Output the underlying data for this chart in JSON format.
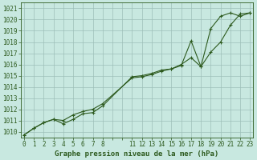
{
  "title": "Graphe pression niveau de la mer (hPa)",
  "background_color": "#c8e8e0",
  "grid_color": "#9dbfb8",
  "line_color": "#2d5a1e",
  "xlim": [
    0,
    23
  ],
  "ylim": [
    1009.5,
    1021.5
  ],
  "yticks": [
    1010,
    1011,
    1012,
    1013,
    1014,
    1015,
    1016,
    1017,
    1018,
    1019,
    1020,
    1021
  ],
  "xticks_all": [
    0,
    1,
    2,
    3,
    4,
    5,
    6,
    7,
    8,
    9,
    10,
    11,
    12,
    13,
    14,
    15,
    16,
    17,
    18,
    19,
    20,
    21,
    22,
    23
  ],
  "xtick_labels": [
    "0",
    "1",
    "2",
    "3",
    "4",
    "5",
    "6",
    "7",
    "8",
    "",
    "",
    "11",
    "12",
    "13",
    "14",
    "15",
    "16",
    "17",
    "18",
    "19",
    "20",
    "21",
    "22",
    "23"
  ],
  "series1_x": [
    0,
    1,
    2,
    3,
    4,
    5,
    6,
    7,
    8,
    11,
    12,
    13,
    14,
    15,
    16,
    17,
    18,
    19,
    20,
    21,
    22,
    23
  ],
  "series1_y": [
    1009.7,
    1010.3,
    1010.8,
    1011.1,
    1010.7,
    1011.1,
    1011.6,
    1011.7,
    1012.3,
    1014.9,
    1015.0,
    1015.2,
    1015.5,
    1015.6,
    1015.9,
    1018.1,
    1015.8,
    1019.2,
    1020.3,
    1020.6,
    1020.3,
    1020.6
  ],
  "series2_x": [
    0,
    1,
    2,
    3,
    4,
    5,
    6,
    7,
    8,
    11,
    12,
    13,
    14,
    15,
    16,
    17,
    18,
    19,
    20,
    21,
    22,
    23
  ],
  "series2_y": [
    1009.7,
    1010.3,
    1010.8,
    1011.1,
    1011.0,
    1011.5,
    1011.8,
    1012.0,
    1012.5,
    1014.8,
    1014.9,
    1015.1,
    1015.4,
    1015.6,
    1016.0,
    1016.6,
    1015.8,
    1017.1,
    1018.0,
    1019.5,
    1020.5,
    1020.6
  ],
  "title_fontsize": 6.5,
  "tick_fontsize": 5.5,
  "marker_size": 3.5,
  "line_width": 0.8
}
